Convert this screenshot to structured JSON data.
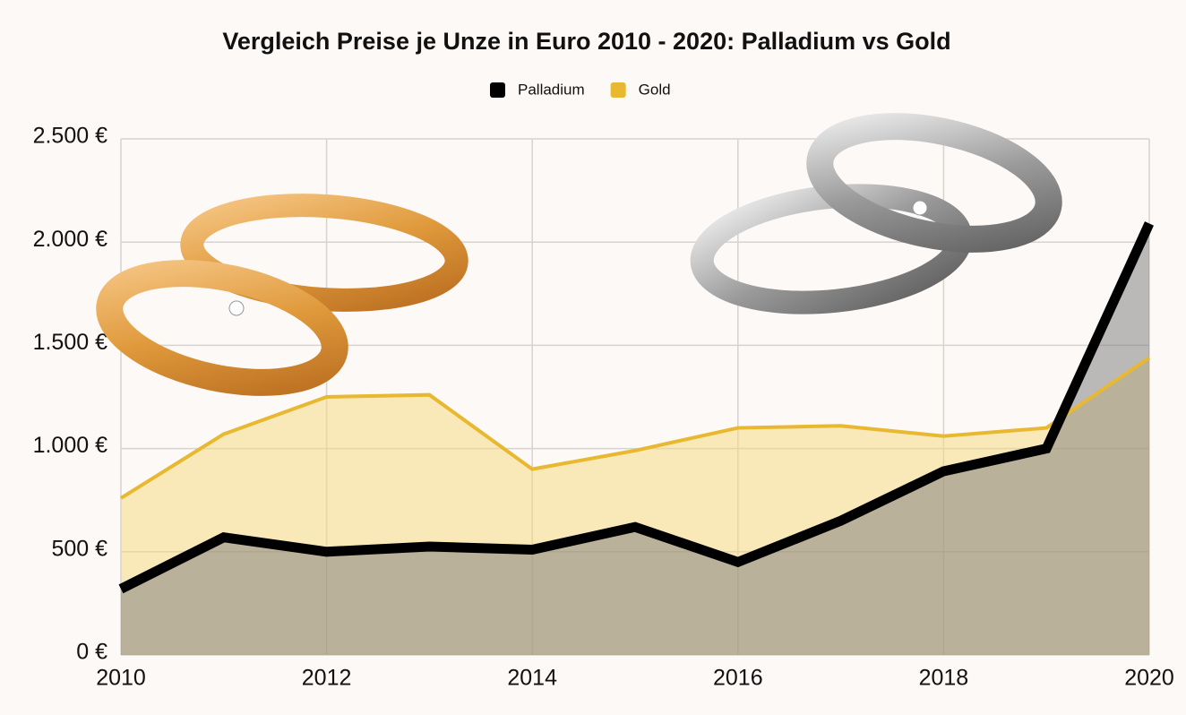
{
  "chart_data": {
    "type": "area",
    "title": "Vergleich Preise je Unze in Euro 2010 - 2020: Palladium vs Gold",
    "x": [
      2010,
      2011,
      2012,
      2013,
      2014,
      2015,
      2016,
      2017,
      2018,
      2019,
      2020
    ],
    "series": [
      {
        "name": "Palladium",
        "color": "#000000",
        "values": [
          320,
          570,
          500,
          525,
          510,
          620,
          450,
          650,
          890,
          1000,
          2090
        ]
      },
      {
        "name": "Gold",
        "color": "#e8b830",
        "values": [
          760,
          1070,
          1250,
          1260,
          900,
          990,
          1100,
          1110,
          1060,
          1100,
          1440
        ]
      }
    ],
    "xlim": [
      2010,
      2020
    ],
    "xticks": [
      2010,
      2012,
      2014,
      2016,
      2018,
      2020
    ],
    "ylim": [
      0,
      2500
    ],
    "yticks": [
      {
        "value": 0,
        "label": "0 €"
      },
      {
        "value": 500,
        "label": "500 €"
      },
      {
        "value": 1000,
        "label": "1.000 €"
      },
      {
        "value": 1500,
        "label": "1.500 €"
      },
      {
        "value": 2000,
        "label": "2.000 €"
      },
      {
        "value": 2500,
        "label": "2.500 €"
      }
    ],
    "grid": true,
    "legend": "top"
  }
}
